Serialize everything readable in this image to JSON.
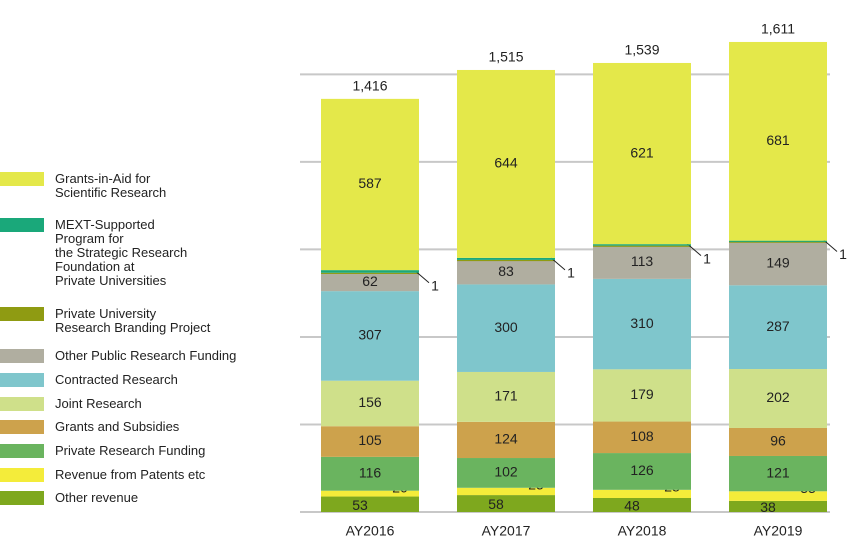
{
  "chart_data": {
    "type": "stacked_bar",
    "categories": [
      "AY2016",
      "AY2017",
      "AY2018",
      "AY2019"
    ],
    "series": [
      {
        "name": "Other revenue",
        "color": "#7ea81e",
        "values": [
          53,
          58,
          48,
          38
        ]
      },
      {
        "name": "Revenue from Patents etc",
        "color": "#f4ec3a",
        "values": [
          20,
          25,
          28,
          33
        ]
      },
      {
        "name": "Private Research Funding",
        "color": "#6ab45f",
        "values": [
          116,
          102,
          126,
          121
        ]
      },
      {
        "name": "Grants and Subsidies",
        "color": "#cda24c",
        "values": [
          105,
          124,
          108,
          96
        ]
      },
      {
        "name": "Joint Research",
        "color": "#cfe08a",
        "values": [
          156,
          171,
          179,
          202
        ]
      },
      {
        "name": "Contracted Research",
        "color": "#7fc6cc",
        "values": [
          307,
          300,
          310,
          287
        ]
      },
      {
        "name": "Other Public Research Funding",
        "color": "#b0aea0",
        "values": [
          62,
          83,
          113,
          149
        ]
      },
      {
        "name": "Private University\nResearch Branding Project",
        "color": "#8f9b12",
        "values": [
          1,
          1,
          1,
          1
        ]
      },
      {
        "name": "MEXT-Supported\nProgram for\nthe Strategic Research\nFoundation at\nPrivate Universities",
        "color": "#1aa87a",
        "values": [
          9,
          7,
          5,
          3
        ]
      },
      {
        "name": "Grants-in-Aid for\nScientific Research",
        "color": "#e4e84a",
        "values": [
          587,
          644,
          621,
          681
        ]
      }
    ],
    "totals": [
      1416,
      1515,
      1539,
      1611
    ],
    "total_labels": [
      "1,416",
      "1,515",
      "1,539",
      "1,611"
    ],
    "ylim": [
      0,
      1700
    ],
    "yticks": [
      0,
      300,
      600,
      900,
      1200,
      1500
    ],
    "grid": true,
    "legend": "left"
  }
}
